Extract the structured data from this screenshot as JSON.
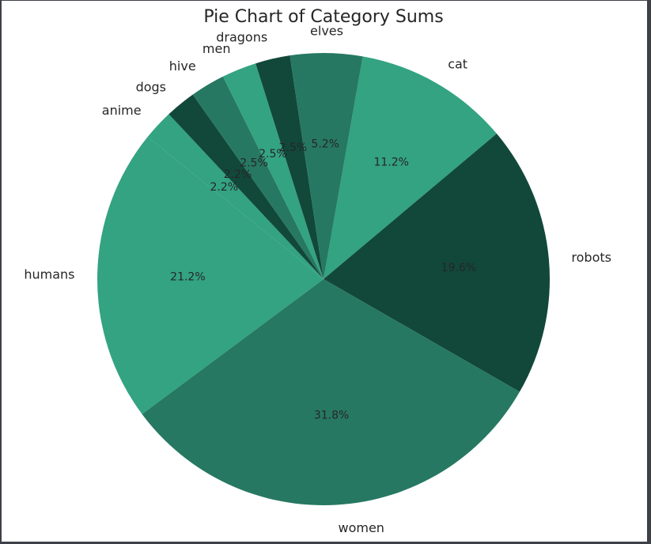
{
  "chart_data": {
    "type": "pie",
    "title": "Pie Chart of Category Sums",
    "autopct_format": "{v}%",
    "slices": [
      {
        "label": "cat",
        "value": 11.2,
        "pct_text": "11.2%",
        "color": "#33a381"
      },
      {
        "label": "robots",
        "value": 19.6,
        "pct_text": "19.6%",
        "color": "#11483a"
      },
      {
        "label": "women",
        "value": 31.8,
        "pct_text": "31.8%",
        "color": "#267862"
      },
      {
        "label": "humans",
        "value": 21.2,
        "pct_text": "21.2%",
        "color": "#33a381"
      },
      {
        "label": "anime",
        "value": 2.2,
        "pct_text": "2.2%",
        "color": "#33a381"
      },
      {
        "label": "dogs",
        "value": 2.2,
        "pct_text": "2.2%",
        "color": "#11483a"
      },
      {
        "label": "hive",
        "value": 2.5,
        "pct_text": "2.5%",
        "color": "#267862"
      },
      {
        "label": "men",
        "value": 2.5,
        "pct_text": "2.5%",
        "color": "#33a381"
      },
      {
        "label": "dragons",
        "value": 2.5,
        "pct_text": "2.5%",
        "color": "#11483a"
      },
      {
        "label": "elves",
        "value": 5.2,
        "pct_text": "5.2%",
        "color": "#267862"
      }
    ],
    "start_angle_deg": 80,
    "direction": "clockwise",
    "legend": "none"
  }
}
